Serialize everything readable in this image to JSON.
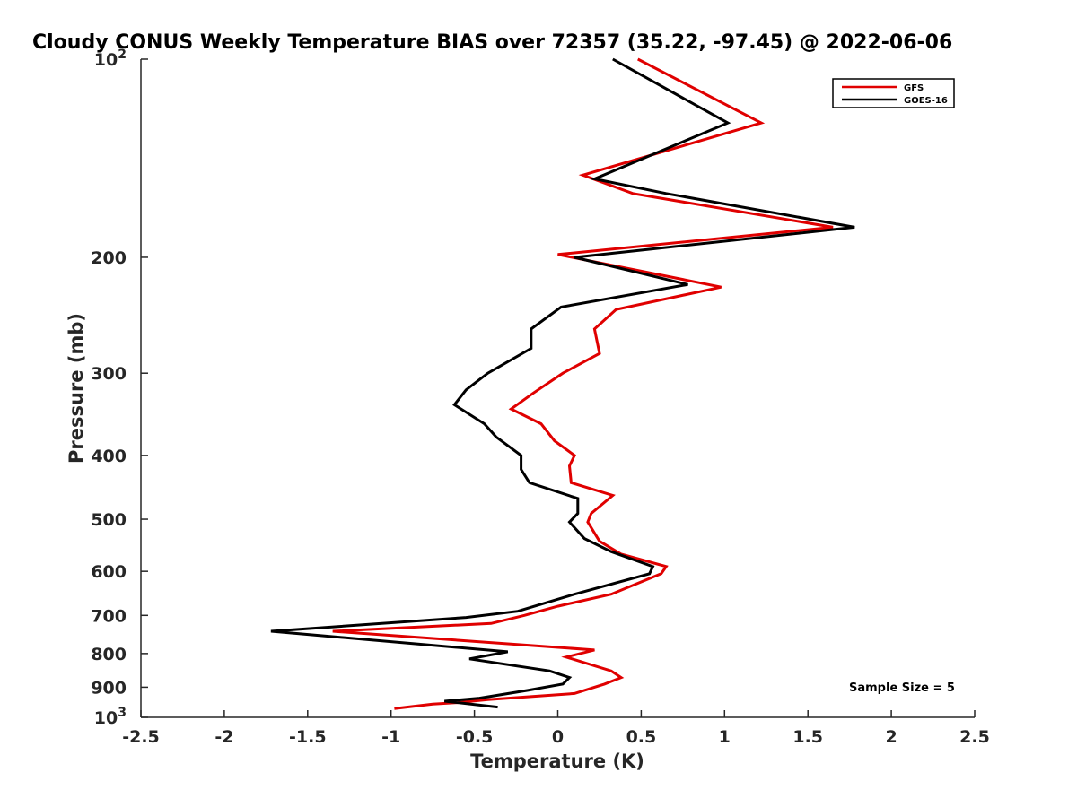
{
  "chart_data": {
    "type": "line",
    "title": "Cloudy CONUS Weekly Temperature BIAS over 72357 (35.22, -97.45) @ 2022-06-06",
    "xlabel": "Temperature (K)",
    "ylabel": "Pressure (mb)",
    "xlim": [
      -2.5,
      2.5
    ],
    "ylim": [
      100,
      1000
    ],
    "y_scale": "log",
    "y_reversed": true,
    "x_ticks": [
      "-2.5",
      "-2",
      "-1.5",
      "-1",
      "-0.5",
      "0",
      "0.5",
      "1",
      "1.5",
      "2",
      "2.5"
    ],
    "y_ticks": [
      {
        "value": 100,
        "base": "10",
        "exp": "2"
      },
      {
        "value": 200,
        "label": "200"
      },
      {
        "value": 300,
        "label": "300"
      },
      {
        "value": 400,
        "label": "400"
      },
      {
        "value": 500,
        "label": "500"
      },
      {
        "value": 600,
        "label": "600"
      },
      {
        "value": 700,
        "label": "700"
      },
      {
        "value": 800,
        "label": "800"
      },
      {
        "value": 900,
        "label": "900"
      },
      {
        "value": 1000,
        "base": "10",
        "exp": "3"
      }
    ],
    "grid": false,
    "legend_position": "top-right",
    "annotation": "Sample Size = 5",
    "series": [
      {
        "name": "GFS",
        "color": "#e00000",
        "points": [
          [
            0.48,
            100
          ],
          [
            1.22,
            125
          ],
          [
            0.15,
            150
          ],
          [
            0.45,
            160
          ],
          [
            1.65,
            180
          ],
          [
            0.0,
            198
          ],
          [
            0.98,
            222
          ],
          [
            0.35,
            240
          ],
          [
            0.22,
            257
          ],
          [
            0.25,
            280
          ],
          [
            0.03,
            300
          ],
          [
            -0.15,
            322
          ],
          [
            -0.28,
            340
          ],
          [
            -0.1,
            358
          ],
          [
            -0.02,
            380
          ],
          [
            0.1,
            400
          ],
          [
            0.07,
            415
          ],
          [
            0.08,
            440
          ],
          [
            0.33,
            460
          ],
          [
            0.2,
            490
          ],
          [
            0.18,
            505
          ],
          [
            0.25,
            540
          ],
          [
            0.38,
            565
          ],
          [
            0.65,
            590
          ],
          [
            0.62,
            605
          ],
          [
            0.32,
            650
          ],
          [
            0.0,
            678
          ],
          [
            -0.2,
            700
          ],
          [
            -0.4,
            720
          ],
          [
            -1.35,
            740
          ],
          [
            0.22,
            790
          ],
          [
            0.05,
            810
          ],
          [
            0.32,
            850
          ],
          [
            0.38,
            870
          ],
          [
            0.28,
            890
          ],
          [
            0.1,
            920
          ],
          [
            -0.42,
            940
          ],
          [
            -0.6,
            950
          ],
          [
            -0.75,
            955
          ],
          [
            -0.98,
            970
          ]
        ]
      },
      {
        "name": "GOES-16",
        "color": "#000000",
        "points": [
          [
            0.33,
            100
          ],
          [
            1.02,
            125
          ],
          [
            0.22,
            152
          ],
          [
            0.65,
            160
          ],
          [
            1.78,
            180
          ],
          [
            0.1,
            200
          ],
          [
            0.78,
            220
          ],
          [
            0.02,
            238
          ],
          [
            -0.16,
            257
          ],
          [
            -0.16,
            275
          ],
          [
            -0.42,
            300
          ],
          [
            -0.55,
            318
          ],
          [
            -0.62,
            335
          ],
          [
            -0.44,
            358
          ],
          [
            -0.37,
            375
          ],
          [
            -0.22,
            400
          ],
          [
            -0.22,
            420
          ],
          [
            -0.17,
            440
          ],
          [
            0.12,
            465
          ],
          [
            0.12,
            490
          ],
          [
            0.07,
            505
          ],
          [
            0.16,
            535
          ],
          [
            0.32,
            560
          ],
          [
            0.57,
            590
          ],
          [
            0.55,
            605
          ],
          [
            0.1,
            650
          ],
          [
            -0.24,
            690
          ],
          [
            -0.55,
            705
          ],
          [
            -1.72,
            740
          ],
          [
            -0.3,
            795
          ],
          [
            -0.53,
            815
          ],
          [
            -0.05,
            850
          ],
          [
            0.07,
            870
          ],
          [
            0.03,
            890
          ],
          [
            -0.18,
            910
          ],
          [
            -0.47,
            935
          ],
          [
            -0.68,
            945
          ],
          [
            -0.36,
            965
          ]
        ]
      }
    ]
  }
}
